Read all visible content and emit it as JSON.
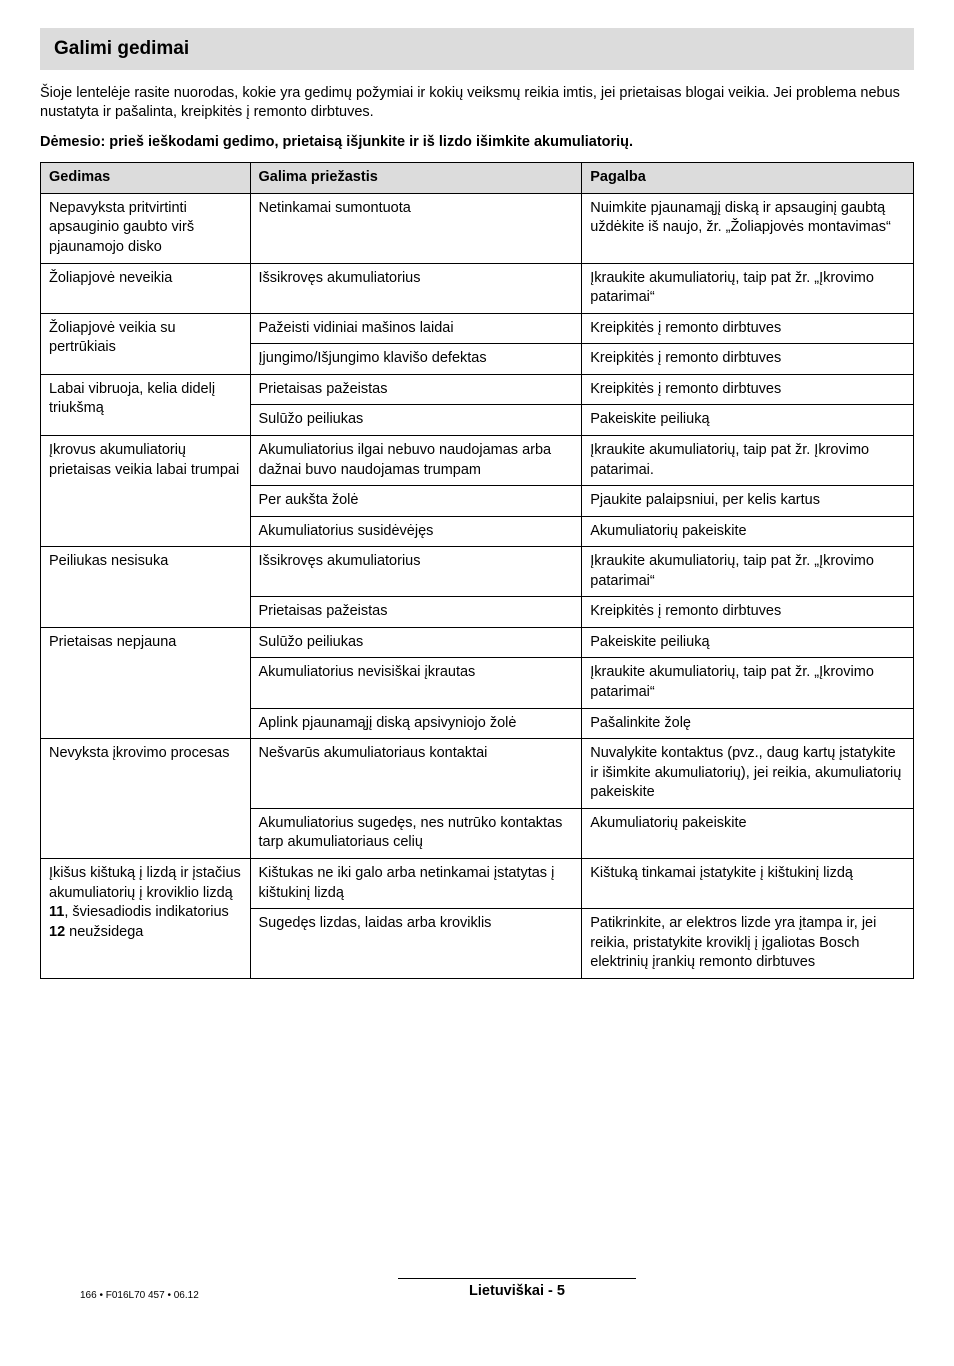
{
  "header": {
    "title": "Galimi gedimai"
  },
  "intro": "Šioje lentelėje rasite nuorodas, kokie yra gedimų požymiai ir kokių veiksmų reikia imtis, jei prietaisas blogai veikia. Jei problema nebus nustatyta ir pašalinta, kreipkitės į remonto dirbtuves.",
  "warning": "Dėmesio: prieš ieškodami gedimo, prietaisą išjunkite ir iš lizdo išimkite akumuliatorių.",
  "table": {
    "headers": {
      "c1": "Gedimas",
      "c2": "Galima priežastis",
      "c3": "Pagalba"
    },
    "rows": [
      {
        "c1": "Nepavyksta pritvirtinti apsauginio gaubto virš pjaunamojo disko",
        "c2": "Netinkamai sumontuota",
        "c3": "Nuimkite pjaunamąjį diską ir apsauginį gaubtą uždėkite iš naujo, žr. „Žoliapjovės montavimas“"
      },
      {
        "c1": "Žoliapjovė neveikia",
        "c2": "Išsikrovęs akumuliatorius",
        "c3": "Įkraukite akumuliatorių, taip pat žr. „Įkrovimo patarimai“"
      },
      {
        "c1": "Žoliapjovė veikia su pertrūkiais",
        "sub": [
          {
            "c2": "Pažeisti vidiniai mašinos laidai",
            "c3": "Kreipkitės į remonto dirbtuves"
          },
          {
            "c2": "Įjungimo/Išjungimo klavišo defektas",
            "c3": "Kreipkitės į remonto dirbtuves"
          }
        ]
      },
      {
        "c1": "Labai vibruoja, kelia didelį triukšmą",
        "sub": [
          {
            "c2": "Prietaisas pažeistas",
            "c3": "Kreipkitės į remonto dirbtuves"
          },
          {
            "c2": "Sulūžo peiliukas",
            "c3": "Pakeiskite peiliuką"
          }
        ]
      },
      {
        "c1": "Įkrovus akumuliatorių prietaisas veikia labai trumpai",
        "sub": [
          {
            "c2": "Akumuliatorius ilgai nebuvo naudojamas arba dažnai buvo naudojamas trumpam",
            "c3": "Įkraukite akumuliatorių, taip pat žr. Įkrovimo patarimai."
          },
          {
            "c2": "Per aukšta žolė",
            "c3": "Pjaukite palaipsniui, per kelis kartus"
          },
          {
            "c2": "Akumuliatorius susidėvėjęs",
            "c3": "Akumuliatorių pakeiskite"
          }
        ]
      },
      {
        "c1": "Peiliukas nesisuka",
        "sub": [
          {
            "c2": "Išsikrovęs akumuliatorius",
            "c3": "Įkraukite akumuliatorių, taip pat žr. „Įkrovimo patarimai“"
          },
          {
            "c2": "Prietaisas pažeistas",
            "c3": "Kreipkitės į remonto dirbtuves"
          }
        ]
      },
      {
        "c1": "Prietaisas nepjauna",
        "sub": [
          {
            "c2": "Sulūžo peiliukas",
            "c3": "Pakeiskite peiliuką"
          },
          {
            "c2": "Akumuliatorius nevisiškai įkrautas",
            "c3": "Įkraukite akumuliatorių, taip pat žr. „Įkrovimo patarimai“"
          },
          {
            "c2": "Aplink pjaunamąjį diską apsivyniojo žolė",
            "c3": "Pašalinkite žolę"
          }
        ]
      },
      {
        "c1": "Nevyksta įkrovimo procesas",
        "sub": [
          {
            "c2": "Nešvarūs akumuliatoriaus kontaktai",
            "c3": "Nuvalykite kontaktus (pvz., daug kartų įstatykite ir išimkite akumuliatorių), jei reikia, akumuliatorių pakeiskite"
          },
          {
            "c2": "Akumuliatorius sugedęs, nes nutrūko kontaktas tarp akumuliatoriaus celių",
            "c3": "Akumuliatorių pakeiskite"
          }
        ]
      },
      {
        "c1_html": "Įkišus kištuką į lizdą ir įstačius akumuliatorių į kroviklio lizdą <b>11</b>, šviesadiodis indikatorius <b>12</b> neužsidega",
        "sub": [
          {
            "c2": "Kištukas ne iki galo arba netinkamai įstatytas į kištukinį lizdą",
            "c3": "Kištuką tinkamai įstatykite į kištukinį lizdą"
          },
          {
            "c2": "Sugedęs lizdas, laidas arba kroviklis",
            "c3": "Patikrinkite, ar elektros lizde yra įtampa ir, jei reikia, pristatykite kroviklį į įgaliotas Bosch elektrinių įrankių remonto dirbtuves"
          }
        ]
      }
    ]
  },
  "footer": {
    "left": "166 • F016L70 457 • 06.12",
    "center": "Lietuviškai - 5"
  },
  "colors": {
    "header_bg": "#dcdcdc",
    "border": "#000000",
    "text": "#000000",
    "page_bg": "#ffffff"
  },
  "fonts": {
    "body_size_pt": 11,
    "title_size_pt": 14,
    "footer_small_pt": 7.5
  }
}
